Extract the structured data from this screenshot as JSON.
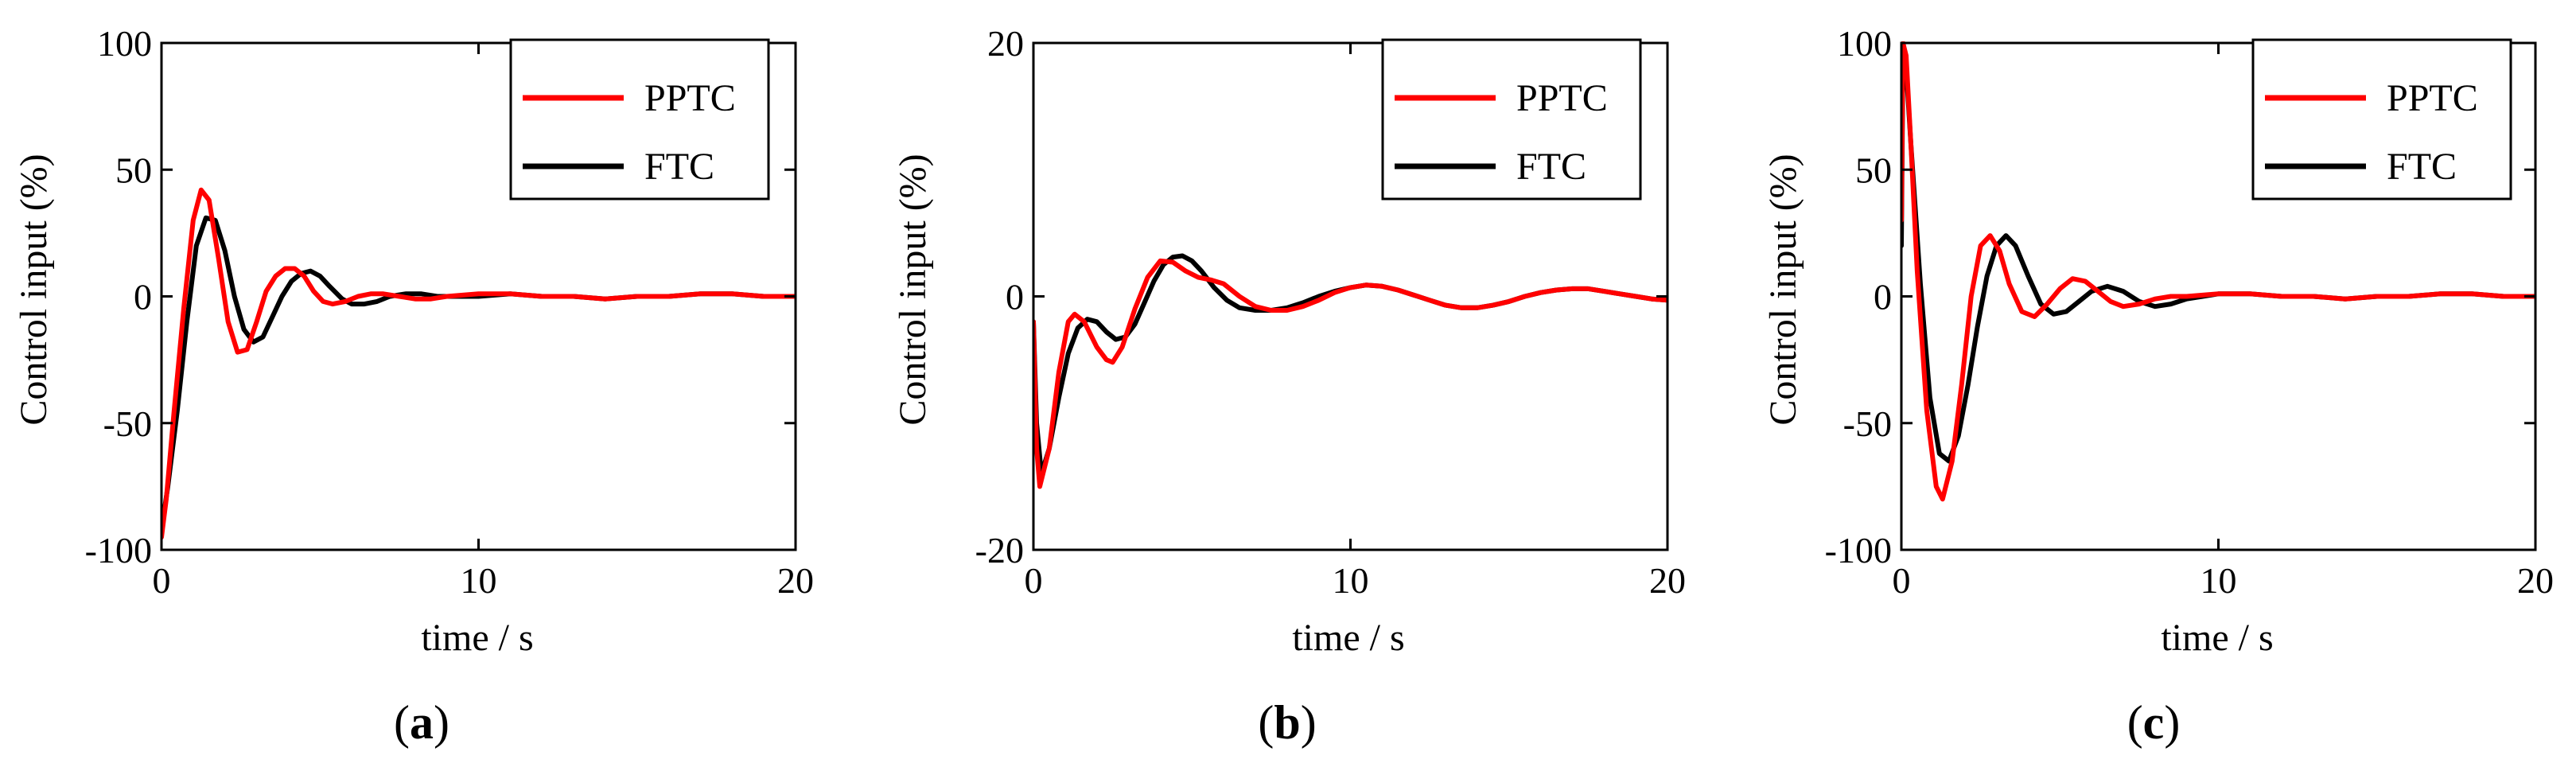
{
  "legend": {
    "series": [
      {
        "name": "PPTC",
        "color": "#ff0000"
      },
      {
        "name": "FTC",
        "color": "#000000"
      }
    ]
  },
  "chart_data": [
    {
      "type": "line",
      "panel_label": "a",
      "xlabel": "time / s",
      "ylabel": "Control input (%)",
      "xlim": [
        0,
        20
      ],
      "ylim": [
        -100,
        100
      ],
      "xticks": [
        "0",
        "10",
        "20"
      ],
      "yticks": [
        "-100",
        "-50",
        "0",
        "50",
        "100"
      ],
      "legend_position": "top-right",
      "series": [
        {
          "name": "PPTC",
          "color": "#ff0000",
          "x": [
            0,
            0.15,
            0.4,
            0.7,
            1.0,
            1.25,
            1.5,
            1.8,
            2.1,
            2.4,
            2.7,
            3.0,
            3.3,
            3.6,
            3.9,
            4.2,
            4.5,
            4.8,
            5.1,
            5.4,
            5.8,
            6.2,
            6.6,
            7.0,
            7.5,
            8.0,
            8.5,
            9.0,
            10.0,
            11.0,
            12.0,
            13.0,
            14.0,
            15.0,
            16.0,
            17.0,
            18.0,
            19.0,
            20.0
          ],
          "y": [
            -95,
            -80,
            -45,
            -5,
            30,
            42,
            38,
            15,
            -10,
            -22,
            -21,
            -10,
            2,
            8,
            11,
            11,
            8,
            2,
            -2,
            -3,
            -2,
            0,
            1,
            1,
            0,
            -1,
            -1,
            0,
            1,
            1,
            0,
            0,
            -1,
            0,
            0,
            1,
            1,
            0,
            0
          ]
        },
        {
          "name": "FTC",
          "color": "#000000",
          "x": [
            0,
            0.2,
            0.5,
            0.8,
            1.1,
            1.4,
            1.7,
            2.0,
            2.3,
            2.6,
            2.9,
            3.2,
            3.5,
            3.8,
            4.1,
            4.4,
            4.7,
            5.0,
            5.3,
            5.7,
            6.0,
            6.4,
            6.8,
            7.2,
            7.7,
            8.2,
            8.7,
            9.2,
            10.0,
            11.0,
            12.0,
            13.0,
            14.0,
            15.0,
            16.0,
            17.0,
            18.0,
            19.0,
            20.0
          ],
          "y": [
            -92,
            -75,
            -45,
            -10,
            20,
            31,
            30,
            18,
            0,
            -13,
            -18,
            -16,
            -8,
            0,
            6,
            9,
            10,
            8,
            4,
            -1,
            -3,
            -3,
            -2,
            0,
            1,
            1,
            0,
            0,
            0,
            1,
            0,
            0,
            -1,
            0,
            0,
            1,
            1,
            0,
            0
          ]
        }
      ]
    },
    {
      "type": "line",
      "panel_label": "b",
      "xlabel": "time / s",
      "ylabel": "Control input (%)",
      "xlim": [
        0,
        20
      ],
      "ylim": [
        -20,
        20
      ],
      "xticks": [
        "0",
        "10",
        "20"
      ],
      "yticks": [
        "-20",
        "0",
        "20"
      ],
      "legend_position": "top-right",
      "series": [
        {
          "name": "PPTC",
          "color": "#ff0000",
          "x": [
            0,
            0.1,
            0.2,
            0.5,
            0.8,
            1.1,
            1.3,
            1.6,
            2.0,
            2.3,
            2.5,
            2.8,
            3.2,
            3.6,
            4.0,
            4.4,
            4.8,
            5.2,
            5.6,
            6.0,
            6.5,
            7.0,
            7.5,
            8.0,
            8.5,
            9.0,
            9.5,
            10.0,
            10.5,
            11.0,
            11.5,
            12.0,
            12.5,
            13.0,
            13.5,
            14.0,
            14.5,
            15.0,
            15.5,
            16.0,
            16.5,
            17.0,
            17.5,
            18.0,
            18.5,
            19.0,
            19.5,
            20.0
          ],
          "y": [
            -2,
            -12,
            -15,
            -12,
            -6,
            -2,
            -1.4,
            -2,
            -4,
            -5,
            -5.2,
            -4,
            -1,
            1.5,
            2.8,
            2.7,
            2,
            1.5,
            1.3,
            1,
            0,
            -0.8,
            -1.1,
            -1.1,
            -0.8,
            -0.3,
            0.3,
            0.7,
            0.9,
            0.8,
            0.5,
            0.1,
            -0.3,
            -0.7,
            -0.9,
            -0.9,
            -0.7,
            -0.4,
            0,
            0.3,
            0.5,
            0.6,
            0.6,
            0.4,
            0.2,
            0,
            -0.2,
            -0.3
          ]
        },
        {
          "name": "FTC",
          "color": "#000000",
          "x": [
            0,
            0.1,
            0.25,
            0.5,
            0.8,
            1.1,
            1.4,
            1.7,
            2.0,
            2.3,
            2.6,
            2.9,
            3.2,
            3.5,
            3.8,
            4.1,
            4.4,
            4.7,
            5.0,
            5.3,
            5.7,
            6.1,
            6.5,
            7.0,
            7.5,
            8.0,
            8.5,
            9.0,
            9.5,
            10.0,
            10.5,
            11.0,
            11.5,
            12.0,
            12.5,
            13.0,
            13.5,
            14.0,
            14.5,
            15.0,
            15.5,
            16.0,
            16.5,
            17.0,
            17.5,
            18.0,
            18.5,
            19.0,
            19.5,
            20.0
          ],
          "y": [
            -2,
            -10,
            -14,
            -12,
            -8,
            -4.5,
            -2.5,
            -1.8,
            -2,
            -2.8,
            -3.4,
            -3.2,
            -2.2,
            -0.5,
            1.2,
            2.5,
            3.1,
            3.2,
            2.8,
            2,
            0.7,
            -0.3,
            -0.9,
            -1.1,
            -1.1,
            -0.9,
            -0.5,
            0,
            0.4,
            0.7,
            0.9,
            0.8,
            0.5,
            0.1,
            -0.3,
            -0.7,
            -0.9,
            -0.9,
            -0.7,
            -0.4,
            0,
            0.3,
            0.5,
            0.6,
            0.6,
            0.4,
            0.2,
            0,
            -0.2,
            -0.3
          ]
        }
      ]
    },
    {
      "type": "line",
      "panel_label": "c",
      "xlabel": "time / s",
      "ylabel": "Control input (%)",
      "xlim": [
        0,
        20
      ],
      "ylim": [
        -100,
        100
      ],
      "xticks": [
        "0",
        "10",
        "20"
      ],
      "yticks": [
        "-100",
        "-50",
        "0",
        "50",
        "100"
      ],
      "legend_position": "top-right",
      "series": [
        {
          "name": "PPTC",
          "color": "#ff0000",
          "x": [
            0,
            0.05,
            0.15,
            0.3,
            0.5,
            0.8,
            1.1,
            1.3,
            1.6,
            1.9,
            2.2,
            2.5,
            2.8,
            3.1,
            3.4,
            3.8,
            4.2,
            4.6,
            5.0,
            5.4,
            5.8,
            6.2,
            6.6,
            7.0,
            7.5,
            8.0,
            8.5,
            9.0,
            10.0,
            11.0,
            12.0,
            13.0,
            14.0,
            15.0,
            16.0,
            17.0,
            18.0,
            19.0,
            20.0
          ],
          "y": [
            30,
            100,
            95,
            60,
            10,
            -45,
            -75,
            -80,
            -65,
            -35,
            0,
            20,
            24,
            18,
            5,
            -6,
            -8,
            -3,
            3,
            7,
            6,
            2,
            -2,
            -4,
            -3,
            -1,
            0,
            0,
            1,
            1,
            0,
            0,
            -1,
            0,
            0,
            1,
            1,
            0,
            0
          ]
        },
        {
          "name": "FTC",
          "color": "#000000",
          "x": [
            0,
            0.05,
            0.15,
            0.3,
            0.6,
            0.9,
            1.2,
            1.5,
            1.8,
            2.1,
            2.4,
            2.7,
            3.0,
            3.3,
            3.6,
            4.0,
            4.4,
            4.8,
            5.2,
            5.6,
            6.0,
            6.5,
            7.0,
            7.5,
            8.0,
            8.5,
            9.0,
            9.5,
            10.0,
            11.0,
            12.0,
            13.0,
            14.0,
            15.0,
            16.0,
            17.0,
            18.0,
            19.0,
            20.0
          ],
          "y": [
            20,
            95,
            90,
            60,
            5,
            -40,
            -62,
            -65,
            -55,
            -35,
            -12,
            8,
            20,
            24,
            20,
            8,
            -3,
            -7,
            -6,
            -2,
            2,
            4,
            2,
            -2,
            -4,
            -3,
            -1,
            0,
            1,
            1,
            0,
            0,
            -1,
            0,
            0,
            1,
            1,
            0,
            0
          ]
        }
      ]
    }
  ]
}
